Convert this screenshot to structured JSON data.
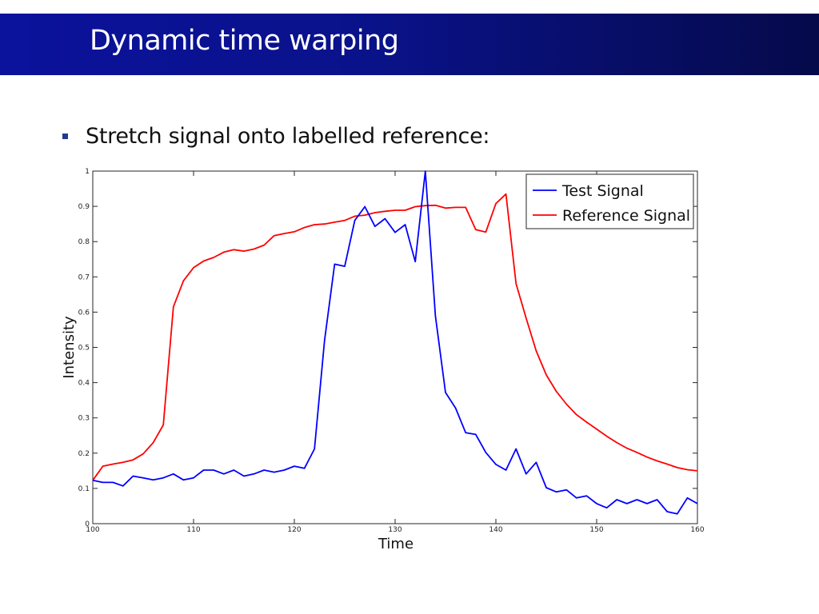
{
  "slide": {
    "title": "Dynamic time warping",
    "bullet": "Stretch signal onto labelled reference:",
    "accent_color": "#0b129c"
  },
  "chart_data": {
    "type": "line",
    "xlabel": "Time",
    "ylabel": "Intensity",
    "xlim": [
      100,
      160
    ],
    "ylim": [
      0,
      1
    ],
    "xticks": [
      100,
      110,
      120,
      130,
      140,
      150,
      160
    ],
    "yticks": [
      0,
      0.1,
      0.2,
      0.3,
      0.4,
      0.5,
      0.6,
      0.7,
      0.8,
      0.9,
      1
    ],
    "grid": false,
    "legend_position": "top-right",
    "x": [
      100,
      101,
      102,
      103,
      104,
      105,
      106,
      107,
      108,
      109,
      110,
      111,
      112,
      113,
      114,
      115,
      116,
      117,
      118,
      119,
      120,
      121,
      122,
      123,
      124,
      125,
      126,
      127,
      128,
      129,
      130,
      131,
      132,
      133,
      134,
      135,
      136,
      137,
      138,
      139,
      140,
      141,
      142,
      143,
      144,
      145,
      146,
      147,
      148,
      149,
      150,
      151,
      152,
      153,
      154,
      155,
      156,
      157,
      158,
      159,
      160
    ],
    "series": [
      {
        "name": "Test Signal",
        "color": "#0000ff",
        "values": [
          0.123,
          0.117,
          0.117,
          0.107,
          0.135,
          0.13,
          0.124,
          0.13,
          0.141,
          0.124,
          0.13,
          0.152,
          0.152,
          0.141,
          0.152,
          0.135,
          0.141,
          0.152,
          0.146,
          0.152,
          0.163,
          0.157,
          0.212,
          0.52,
          0.736,
          0.73,
          0.86,
          0.899,
          0.843,
          0.865,
          0.826,
          0.848,
          0.743,
          1.0,
          0.589,
          0.372,
          0.328,
          0.258,
          0.253,
          0.202,
          0.168,
          0.152,
          0.212,
          0.141,
          0.174,
          0.102,
          0.09,
          0.096,
          0.073,
          0.079,
          0.057,
          0.045,
          0.068,
          0.057,
          0.068,
          0.057,
          0.068,
          0.034,
          0.028,
          0.073,
          0.057
        ]
      },
      {
        "name": "Reference Signal",
        "color": "#ff0000",
        "values": [
          0.123,
          0.163,
          0.169,
          0.174,
          0.181,
          0.198,
          0.23,
          0.28,
          0.615,
          0.689,
          0.726,
          0.745,
          0.755,
          0.77,
          0.777,
          0.773,
          0.779,
          0.79,
          0.817,
          0.823,
          0.828,
          0.84,
          0.848,
          0.85,
          0.855,
          0.86,
          0.872,
          0.875,
          0.882,
          0.886,
          0.889,
          0.889,
          0.899,
          0.902,
          0.903,
          0.895,
          0.897,
          0.897,
          0.834,
          0.827,
          0.908,
          0.935,
          0.681,
          0.583,
          0.49,
          0.422,
          0.375,
          0.339,
          0.309,
          0.288,
          0.268,
          0.248,
          0.23,
          0.214,
          0.202,
          0.189,
          0.178,
          0.169,
          0.159,
          0.153,
          0.15
        ]
      }
    ]
  }
}
